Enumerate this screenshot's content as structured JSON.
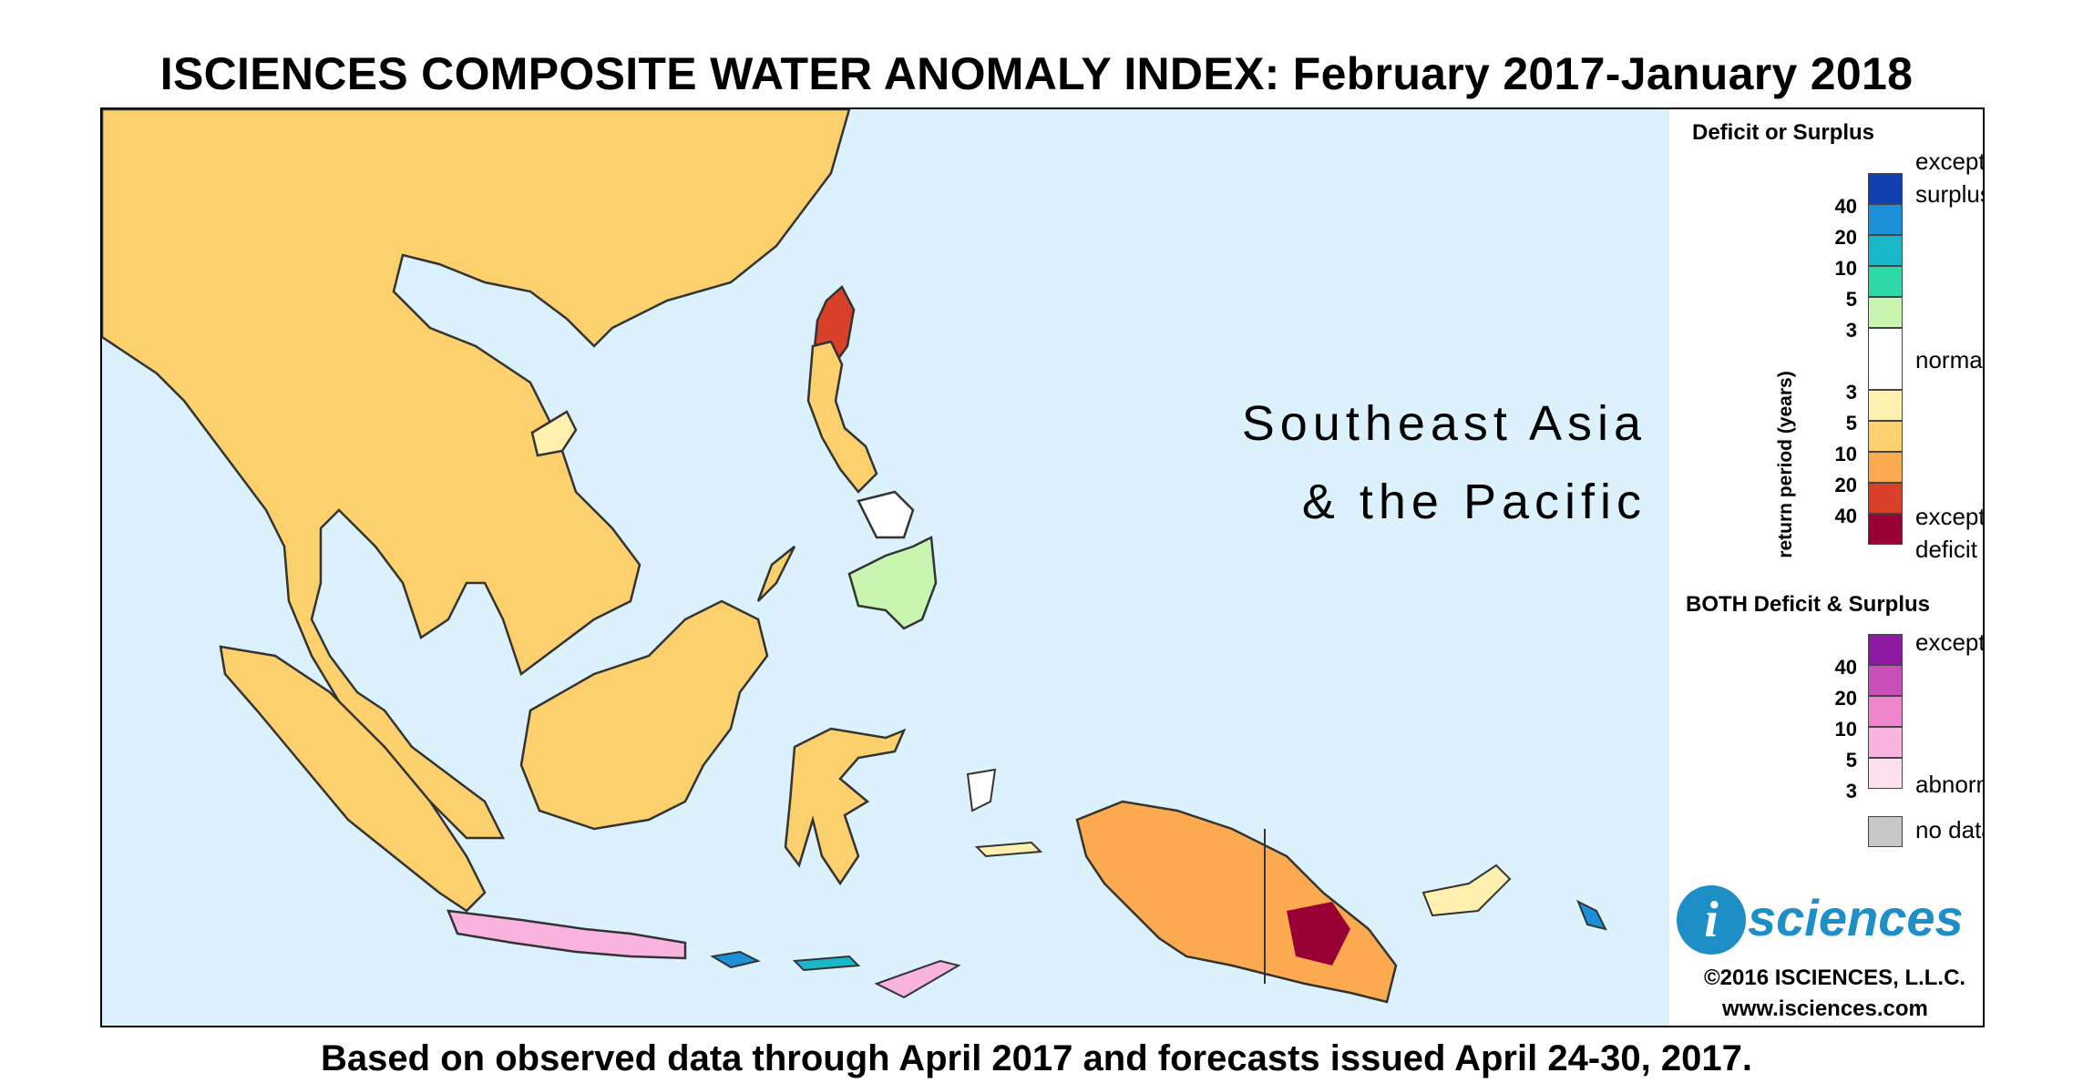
{
  "title": "ISCIENCES COMPOSITE WATER ANOMALY INDEX: February 2017-January 2018",
  "region_label_line1": "Southeast Asia",
  "region_label_line2": "& the Pacific",
  "footer": "Based on observed data through April 2017 and forecasts issued April 24-30, 2017.",
  "colors": {
    "ocean": "#dbf1fb",
    "land_normal": "#ffffff",
    "deficit": [
      "#fff0b0",
      "#fdd06e",
      "#fbaa50",
      "#f08030",
      "#d8402a",
      "#990033"
    ],
    "surplus": [
      "#c8f5b0",
      "#2cd8a8",
      "#18b8c8",
      "#1c90d8",
      "#1040b0"
    ],
    "both": [
      "#fde0ee",
      "#f8b4dc",
      "#ef86cc",
      "#c850b8",
      "#8c1aa0"
    ],
    "no_data": "#c8c8c8",
    "logo_blue": "#1e8fc6"
  },
  "legend": {
    "deficit_surplus_title": "Deficit or Surplus",
    "axis_label": "return period (years)",
    "exceptional_surplus_line1": "exceptional",
    "exceptional_surplus_line2": "surplus",
    "normal": "normal",
    "exceptional_deficit_line1": "exceptional",
    "exceptional_deficit_line2": "deficit",
    "surplus_ticks": [
      "40",
      "20",
      "10",
      "5",
      "3"
    ],
    "deficit_ticks": [
      "3",
      "5",
      "10",
      "20",
      "40"
    ],
    "both_title": "BOTH Deficit & Surplus",
    "both_exceptional": "exceptional",
    "both_abnormal": "abnormal",
    "both_ticks": [
      "40",
      "20",
      "10",
      "5",
      "3"
    ],
    "no_data": "no data"
  },
  "logo": {
    "letter": "i",
    "word": "sciences",
    "copyright": "©2016 ISCIENCES, L.L.C.",
    "website": "www.isciences.com"
  }
}
